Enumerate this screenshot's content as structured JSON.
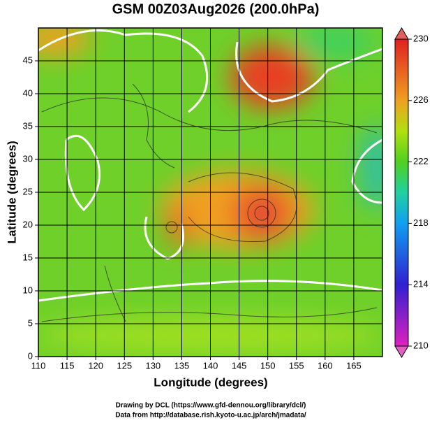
{
  "title": "GSM 00Z03Aug2026 (200.0hPa)",
  "x_axis": {
    "label": "Longitude (degrees)",
    "lim": [
      110,
      170
    ],
    "ticks": [
      110,
      115,
      120,
      125,
      130,
      135,
      140,
      145,
      150,
      155,
      160,
      165
    ]
  },
  "y_axis": {
    "label": "Latitude  (degrees)",
    "lim": [
      0,
      50
    ],
    "ticks": [
      0,
      5,
      10,
      15,
      20,
      25,
      30,
      35,
      40,
      45
    ]
  },
  "colorbar": {
    "lim": [
      210,
      230
    ],
    "ticks": [
      210,
      214,
      218,
      222,
      226,
      230
    ]
  },
  "credits": [
    "Drawing by DCL (https://www.gfd-dennou.org/library/dcl/)",
    "Data from http://database.rish.kyoto-u.ac.jp/arch/jmadata/"
  ]
}
